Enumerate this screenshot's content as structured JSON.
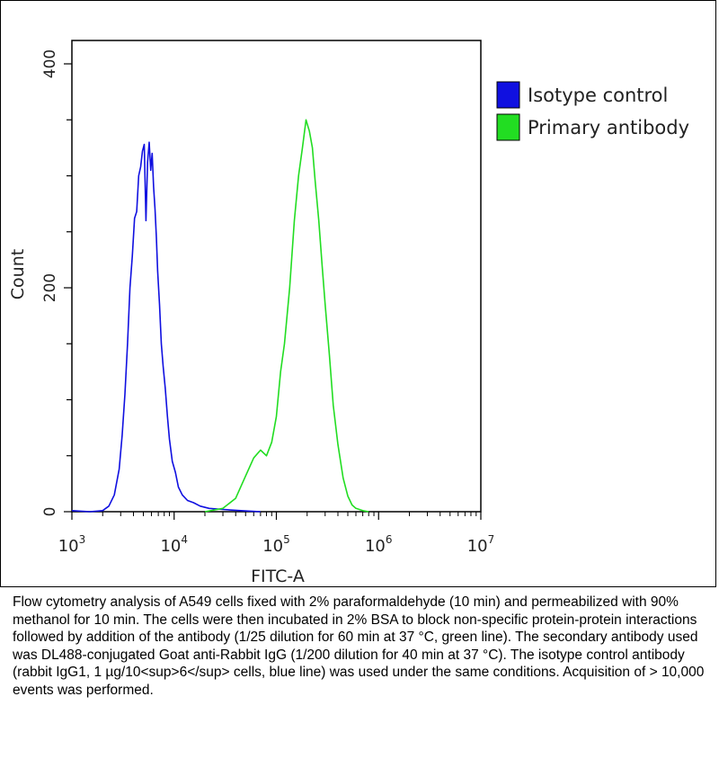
{
  "chart_data": {
    "type": "line",
    "title": "",
    "xlabel": "FITC-A",
    "ylabel": "Count",
    "x_scale": "log",
    "xlim": [
      1000,
      10000000
    ],
    "ylim": [
      0,
      400
    ],
    "x_ticks": [
      {
        "value": 1000,
        "base": "10",
        "exp": "3"
      },
      {
        "value": 10000,
        "base": "10",
        "exp": "4"
      },
      {
        "value": 100000,
        "base": "10",
        "exp": "5"
      },
      {
        "value": 1000000,
        "base": "10",
        "exp": "6"
      },
      {
        "value": 10000000,
        "base": "10",
        "exp": "7"
      }
    ],
    "y_ticks": [
      0,
      200,
      400
    ],
    "grid": false,
    "legend_position": "top-right",
    "series": [
      {
        "name": "Isotype control",
        "color": "#1010e0",
        "x": [
          1000,
          1500,
          2000,
          2300,
          2600,
          2900,
          3100,
          3300,
          3500,
          3700,
          3900,
          4100,
          4300,
          4500,
          4700,
          4900,
          5100,
          5300,
          5500,
          5700,
          5900,
          6100,
          6300,
          6500,
          6700,
          6900,
          7200,
          7500,
          7800,
          8200,
          8600,
          9000,
          9600,
          10300,
          11000,
          12000,
          13500,
          15500,
          18000,
          22000,
          30000,
          45000,
          70000
        ],
        "y": [
          1,
          0,
          1,
          5,
          15,
          38,
          68,
          105,
          150,
          200,
          228,
          262,
          268,
          300,
          308,
          322,
          328,
          260,
          312,
          330,
          305,
          320,
          290,
          270,
          245,
          215,
          185,
          150,
          130,
          110,
          85,
          65,
          45,
          35,
          22,
          15,
          10,
          8,
          5,
          3,
          2,
          1,
          0
        ]
      },
      {
        "name": "Primary antibody",
        "color": "#22dd22",
        "x": [
          20000,
          30000,
          40000,
          50000,
          60000,
          70000,
          80000,
          90000,
          100000,
          110000,
          120000,
          135000,
          150000,
          165000,
          180000,
          195000,
          210000,
          225000,
          240000,
          260000,
          280000,
          300000,
          330000,
          360000,
          400000,
          450000,
          500000,
          550000,
          600000,
          700000,
          800000
        ],
        "y": [
          0,
          3,
          12,
          32,
          48,
          55,
          50,
          62,
          85,
          125,
          150,
          200,
          260,
          300,
          325,
          350,
          340,
          325,
          295,
          260,
          220,
          185,
          140,
          95,
          60,
          30,
          14,
          6,
          3,
          1,
          0
        ]
      }
    ]
  },
  "caption": {
    "text": "Flow cytometry analysis of A549 cells fixed with 2% paraformaldehyde (10 min) and permeabilized with 90% methanol for 10 min. The cells were then incubated in 2% BSA to block non-specific protein-protein interactions followed by addition of the antibody (1/25 dilution for 60 min at 37 °C, green line). The secondary antibody used was DL488-conjugated Goat anti-Rabbit IgG (1/200 dilution for 40 min at 37 °C). The isotype control antibody (rabbit IgG1, 1 µg/10<sup>6</sup> cells, blue line) was used under the same conditions. Acquisition of > 10,000 events was performed."
  }
}
